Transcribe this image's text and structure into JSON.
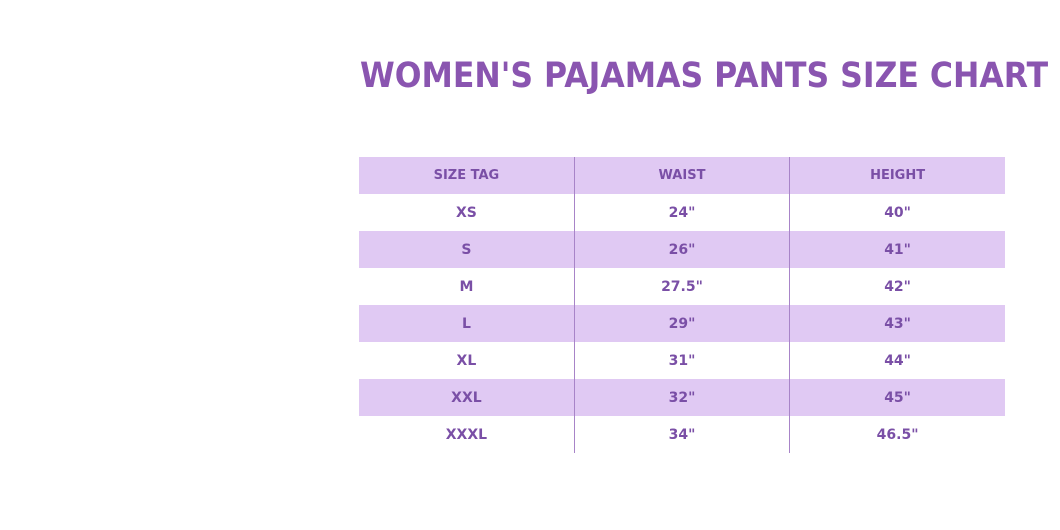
{
  "title": "WOMEN'S PAJAMAS PANTS SIZE CHART",
  "table": {
    "header": [
      "SIZE TAG",
      "WAIST",
      "HEIGHT"
    ],
    "rows": [
      [
        "XS",
        "24\"",
        "40\""
      ],
      [
        "S",
        "26\"",
        "41\""
      ],
      [
        "M",
        "27.5\"",
        "42\""
      ],
      [
        "L",
        "29\"",
        "43\""
      ],
      [
        "XL",
        "31\"",
        "44\""
      ],
      [
        "XXL",
        "32\"",
        "45\""
      ],
      [
        "XXXL",
        "34\"",
        "46.5\""
      ]
    ]
  }
}
